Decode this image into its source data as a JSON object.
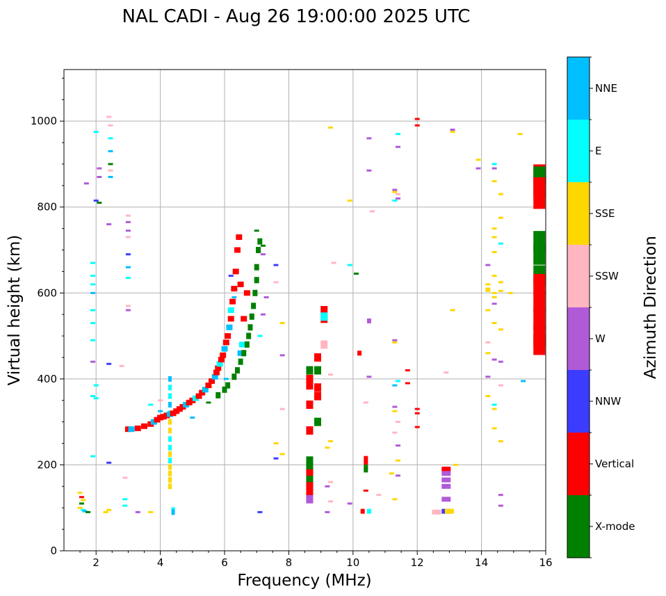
{
  "chart_data": {
    "type": "scatter",
    "title": "NAL CADI - Aug 26 19:00:00 2025 UTC",
    "xlabel": "Frequency (MHz)",
    "ylabel": "Virtual height (km)",
    "xlim": [
      1,
      16
    ],
    "ylim": [
      0,
      1120
    ],
    "xticks": [
      2,
      4,
      6,
      8,
      10,
      12,
      14,
      16
    ],
    "yticks": [
      0,
      200,
      400,
      600,
      800,
      1000
    ],
    "grid": true,
    "colorbar": {
      "label": "Azimuth Direction",
      "categories": [
        {
          "name": "X-mode",
          "color": "#008000"
        },
        {
          "name": "Vertical",
          "color": "#ff0000"
        },
        {
          "name": "NNW",
          "color": "#3c3cff"
        },
        {
          "name": "W",
          "color": "#b05ad8"
        },
        {
          "name": "SSW",
          "color": "#ffb6c1"
        },
        {
          "name": "SSE",
          "color": "#ffd700"
        },
        {
          "name": "E",
          "color": "#00ffff"
        },
        {
          "name": "NNE",
          "color": "#00bfff"
        }
      ]
    },
    "trace": [
      [
        3.0,
        283,
        "Vertical"
      ],
      [
        3.1,
        283,
        "NNE"
      ],
      [
        3.3,
        285,
        "Vertical"
      ],
      [
        3.5,
        290,
        "Vertical"
      ],
      [
        3.7,
        295,
        "Vertical"
      ],
      [
        3.8,
        300,
        "NNE"
      ],
      [
        3.9,
        305,
        "Vertical"
      ],
      [
        4.0,
        310,
        "Vertical"
      ],
      [
        4.1,
        312,
        "Vertical"
      ],
      [
        4.2,
        315,
        "Vertical"
      ],
      [
        4.3,
        318,
        "NNE"
      ],
      [
        4.4,
        320,
        "Vertical"
      ],
      [
        4.5,
        325,
        "Vertical"
      ],
      [
        4.6,
        330,
        "Vertical"
      ],
      [
        4.7,
        335,
        "Vertical"
      ],
      [
        4.8,
        340,
        "NNE"
      ],
      [
        4.9,
        345,
        "Vertical"
      ],
      [
        5.0,
        350,
        "Vertical"
      ],
      [
        5.1,
        355,
        "E"
      ],
      [
        5.2,
        360,
        "Vertical"
      ],
      [
        5.3,
        368,
        "Vertical"
      ],
      [
        5.4,
        375,
        "NNE"
      ],
      [
        5.5,
        385,
        "Vertical"
      ],
      [
        5.6,
        395,
        "Vertical"
      ],
      [
        5.7,
        405,
        "NNE"
      ],
      [
        5.75,
        415,
        "Vertical"
      ],
      [
        5.8,
        425,
        "Vertical"
      ],
      [
        5.85,
        435,
        "E"
      ],
      [
        5.9,
        445,
        "Vertical"
      ],
      [
        5.95,
        455,
        "Vertical"
      ],
      [
        6.0,
        470,
        "NNE"
      ],
      [
        6.05,
        485,
        "Vertical"
      ],
      [
        6.1,
        500,
        "Vertical"
      ],
      [
        6.15,
        520,
        "NNE"
      ],
      [
        6.2,
        540,
        "Vertical"
      ],
      [
        6.2,
        560,
        "E"
      ],
      [
        6.25,
        580,
        "Vertical"
      ],
      [
        6.3,
        610,
        "Vertical"
      ],
      [
        6.35,
        650,
        "Vertical"
      ],
      [
        6.4,
        700,
        "Vertical"
      ],
      [
        6.45,
        730,
        "Vertical"
      ],
      [
        6.5,
        460,
        "NNE"
      ],
      [
        6.55,
        480,
        "E"
      ],
      [
        6.6,
        540,
        "Vertical"
      ],
      [
        6.5,
        620,
        "Vertical"
      ],
      [
        6.7,
        600,
        "Vertical"
      ]
    ],
    "xmode_trace": [
      [
        5.8,
        362,
        "X-mode"
      ],
      [
        6.0,
        375,
        "X-mode"
      ],
      [
        6.1,
        385,
        "X-mode"
      ],
      [
        6.3,
        405,
        "X-mode"
      ],
      [
        6.4,
        420,
        "X-mode"
      ],
      [
        6.5,
        440,
        "X-mode"
      ],
      [
        6.6,
        460,
        "X-mode"
      ],
      [
        6.7,
        480,
        "X-mode"
      ],
      [
        6.75,
        500,
        "X-mode"
      ],
      [
        6.8,
        520,
        "X-mode"
      ],
      [
        6.85,
        545,
        "X-mode"
      ],
      [
        6.9,
        570,
        "X-mode"
      ],
      [
        6.95,
        600,
        "X-mode"
      ],
      [
        7.0,
        630,
        "X-mode"
      ],
      [
        7.0,
        660,
        "X-mode"
      ],
      [
        7.05,
        700,
        "X-mode"
      ],
      [
        7.1,
        720,
        "X-mode"
      ]
    ],
    "f4_column": [
      [
        4.3,
        400,
        "NNE"
      ],
      [
        4.3,
        380,
        "E"
      ],
      [
        4.3,
        360,
        "E"
      ],
      [
        4.3,
        340,
        "NNE"
      ],
      [
        4.3,
        320,
        "E"
      ],
      [
        4.3,
        300,
        "SSE"
      ],
      [
        4.3,
        280,
        "SSE"
      ],
      [
        4.3,
        260,
        "E"
      ],
      [
        4.3,
        240,
        "E"
      ],
      [
        4.3,
        225,
        "SSE"
      ],
      [
        4.3,
        210,
        "E"
      ],
      [
        4.3,
        195,
        "SSE"
      ],
      [
        4.3,
        180,
        "SSE"
      ],
      [
        4.3,
        165,
        "SSE"
      ],
      [
        4.3,
        150,
        "SSE"
      ],
      [
        4.4,
        95,
        "E"
      ],
      [
        4.4,
        90,
        "NNE"
      ]
    ],
    "f86_column": [
      [
        8.65,
        420,
        "X-mode"
      ],
      [
        8.65,
        400,
        "Vertical"
      ],
      [
        8.65,
        385,
        "Vertical"
      ],
      [
        8.65,
        340,
        "Vertical"
      ],
      [
        8.65,
        280,
        "Vertical"
      ],
      [
        8.65,
        210,
        "X-mode"
      ],
      [
        8.65,
        195,
        "X-mode"
      ],
      [
        8.65,
        180,
        "Vertical"
      ],
      [
        8.65,
        165,
        "X-mode"
      ],
      [
        8.65,
        150,
        "Vertical"
      ],
      [
        8.65,
        135,
        "Vertical"
      ],
      [
        8.65,
        120,
        "W"
      ],
      [
        8.9,
        450,
        "Vertical"
      ],
      [
        8.9,
        420,
        "X-mode"
      ],
      [
        8.9,
        380,
        "Vertical"
      ],
      [
        8.9,
        360,
        "Vertical"
      ],
      [
        8.9,
        300,
        "X-mode"
      ],
      [
        9.1,
        560,
        "Vertical"
      ],
      [
        9.1,
        540,
        "Vertical"
      ],
      [
        9.1,
        480,
        "SSW"
      ],
      [
        9.1,
        545,
        "E"
      ]
    ],
    "f104_column": [
      [
        10.4,
        215,
        "Vertical"
      ],
      [
        10.4,
        205,
        "Vertical"
      ],
      [
        10.4,
        195,
        "X-mode"
      ],
      [
        10.4,
        188,
        "X-mode"
      ],
      [
        10.3,
        92,
        "Vertical"
      ],
      [
        10.5,
        92,
        "E"
      ],
      [
        10.2,
        460,
        "Vertical"
      ],
      [
        10.5,
        535,
        "W"
      ]
    ],
    "f128_column": [
      [
        12.9,
        190,
        "Vertical"
      ],
      [
        12.9,
        180,
        "W"
      ],
      [
        12.9,
        165,
        "W"
      ],
      [
        12.9,
        150,
        "W"
      ],
      [
        12.9,
        120,
        "W"
      ],
      [
        12.9,
        92,
        "NNW"
      ],
      [
        13.0,
        92,
        "SSE"
      ],
      [
        12.6,
        90,
        "SSW"
      ]
    ],
    "edge_bar": [
      [
        15.8,
        875,
        "Vertical"
      ],
      [
        15.8,
        870,
        "X-mode"
      ],
      [
        15.8,
        845,
        "Vertical"
      ],
      [
        15.8,
        820,
        "Vertical"
      ],
      [
        15.8,
        720,
        "X-mode"
      ],
      [
        15.8,
        690,
        "X-mode"
      ],
      [
        15.8,
        640,
        "X-mode"
      ],
      [
        15.8,
        620,
        "Vertical"
      ],
      [
        15.8,
        580,
        "Vertical"
      ],
      [
        15.8,
        540,
        "Vertical"
      ],
      [
        15.8,
        500,
        "Vertical"
      ],
      [
        15.8,
        480,
        "Vertical"
      ]
    ],
    "scatter_points": [
      [
        1.5,
        135,
        "SSE"
      ],
      [
        1.55,
        125,
        "Vertical"
      ],
      [
        1.6,
        118,
        "SSE"
      ],
      [
        1.55,
        110,
        "X-mode"
      ],
      [
        1.5,
        100,
        "SSE"
      ],
      [
        1.6,
        95,
        "E"
      ],
      [
        1.65,
        92,
        "NNE"
      ],
      [
        1.75,
        90,
        "X-mode"
      ],
      [
        2.0,
        975,
        "E"
      ],
      [
        2.1,
        890,
        "W"
      ],
      [
        2.1,
        870,
        "W"
      ],
      [
        1.7,
        855,
        "W"
      ],
      [
        2.0,
        815,
        "NNW"
      ],
      [
        2.1,
        810,
        "X-mode"
      ],
      [
        2.4,
        1010,
        "SSW"
      ],
      [
        2.45,
        990,
        "SSW"
      ],
      [
        2.45,
        960,
        "E"
      ],
      [
        2.45,
        930,
        "NNE"
      ],
      [
        2.45,
        900,
        "X-mode"
      ],
      [
        2.45,
        885,
        "SSW"
      ],
      [
        2.45,
        870,
        "NNE"
      ],
      [
        2.4,
        760,
        "W"
      ],
      [
        2.4,
        435,
        "NNW"
      ],
      [
        2.4,
        205,
        "NNW"
      ],
      [
        2.4,
        95,
        "SSE"
      ],
      [
        2.3,
        90,
        "SSE"
      ],
      [
        2.0,
        385,
        "E"
      ],
      [
        2.0,
        355,
        "E"
      ],
      [
        1.9,
        670,
        "E"
      ],
      [
        1.9,
        640,
        "E"
      ],
      [
        1.9,
        620,
        "E"
      ],
      [
        1.9,
        600,
        "NNE"
      ],
      [
        1.9,
        560,
        "E"
      ],
      [
        1.9,
        530,
        "E"
      ],
      [
        1.9,
        490,
        "E"
      ],
      [
        1.9,
        440,
        "W"
      ],
      [
        1.9,
        360,
        "E"
      ],
      [
        1.9,
        220,
        "E"
      ],
      [
        3.0,
        780,
        "SSW"
      ],
      [
        3.0,
        765,
        "W"
      ],
      [
        3.0,
        745,
        "W"
      ],
      [
        3.0,
        730,
        "SSW"
      ],
      [
        3.0,
        690,
        "NNW"
      ],
      [
        3.0,
        660,
        "NNE"
      ],
      [
        3.0,
        635,
        "E"
      ],
      [
        3.0,
        570,
        "SSW"
      ],
      [
        3.0,
        560,
        "W"
      ],
      [
        2.9,
        170,
        "SSW"
      ],
      [
        2.9,
        120,
        "E"
      ],
      [
        2.9,
        105,
        "E"
      ],
      [
        3.3,
        90,
        "W"
      ],
      [
        3.7,
        90,
        "SSE"
      ],
      [
        2.8,
        430,
        "SSW"
      ],
      [
        4.0,
        350,
        "SSW"
      ],
      [
        4.0,
        325,
        "NNE"
      ],
      [
        3.7,
        340,
        "E"
      ],
      [
        5.0,
        310,
        "NNE"
      ],
      [
        5.5,
        345,
        "X-mode"
      ],
      [
        6.05,
        400,
        "NNE"
      ],
      [
        6.3,
        590,
        "NNE"
      ],
      [
        6.2,
        640,
        "NNW"
      ],
      [
        7.0,
        745,
        "X-mode"
      ],
      [
        7.2,
        710,
        "X-mode"
      ],
      [
        7.2,
        690,
        "W"
      ],
      [
        7.1,
        500,
        "E"
      ],
      [
        7.2,
        550,
        "W"
      ],
      [
        7.3,
        590,
        "W"
      ],
      [
        7.1,
        90,
        "NNW"
      ],
      [
        7.6,
        665,
        "NNW"
      ],
      [
        7.6,
        625,
        "SSW"
      ],
      [
        7.6,
        250,
        "SSE"
      ],
      [
        7.6,
        215,
        "NNW"
      ],
      [
        7.8,
        530,
        "SSE"
      ],
      [
        7.8,
        455,
        "W"
      ],
      [
        7.8,
        330,
        "SSW"
      ],
      [
        7.8,
        225,
        "SSE"
      ],
      [
        9.3,
        985,
        "SSE"
      ],
      [
        9.4,
        670,
        "SSW"
      ],
      [
        9.3,
        410,
        "SSW"
      ],
      [
        9.3,
        255,
        "SSE"
      ],
      [
        9.2,
        240,
        "SSE"
      ],
      [
        9.3,
        160,
        "SSW"
      ],
      [
        9.2,
        150,
        "W"
      ],
      [
        9.3,
        115,
        "SSW"
      ],
      [
        9.2,
        90,
        "W"
      ],
      [
        9.9,
        815,
        "SSE"
      ],
      [
        9.9,
        665,
        "E"
      ],
      [
        10.1,
        645,
        "X-mode"
      ],
      [
        9.9,
        110,
        "W"
      ],
      [
        10.5,
        960,
        "W"
      ],
      [
        10.5,
        885,
        "W"
      ],
      [
        10.6,
        790,
        "SSW"
      ],
      [
        10.5,
        405,
        "W"
      ],
      [
        10.4,
        345,
        "SSW"
      ],
      [
        10.4,
        140,
        "Vertical"
      ],
      [
        10.8,
        130,
        "SSW"
      ],
      [
        11.4,
        970,
        "E"
      ],
      [
        11.4,
        940,
        "W"
      ],
      [
        11.3,
        840,
        "W"
      ],
      [
        11.3,
        835,
        "SSE"
      ],
      [
        11.4,
        830,
        "SSW"
      ],
      [
        11.4,
        820,
        "W"
      ],
      [
        11.3,
        815,
        "E"
      ],
      [
        11.3,
        490,
        "W"
      ],
      [
        11.3,
        485,
        "SSE"
      ],
      [
        11.3,
        385,
        "NNE"
      ],
      [
        11.4,
        395,
        "E"
      ],
      [
        11.7,
        420,
        "Vertical"
      ],
      [
        11.7,
        390,
        "Vertical"
      ],
      [
        11.3,
        335,
        "W"
      ],
      [
        11.3,
        325,
        "SSE"
      ],
      [
        11.4,
        300,
        "SSW"
      ],
      [
        11.3,
        275,
        "SSW"
      ],
      [
        11.4,
        245,
        "W"
      ],
      [
        11.4,
        210,
        "SSE"
      ],
      [
        11.2,
        180,
        "SSE"
      ],
      [
        11.4,
        175,
        "W"
      ],
      [
        11.3,
        120,
        "SSE"
      ],
      [
        12.0,
        1005,
        "Vertical"
      ],
      [
        12.0,
        990,
        "Vertical"
      ],
      [
        12.0,
        330,
        "Vertical"
      ],
      [
        12.0,
        320,
        "Vertical"
      ],
      [
        12.0,
        288,
        "Vertical"
      ],
      [
        13.1,
        980,
        "W"
      ],
      [
        13.1,
        975,
        "SSE"
      ],
      [
        13.1,
        560,
        "SSE"
      ],
      [
        12.9,
        415,
        "SSW"
      ],
      [
        13.2,
        200,
        "SSE"
      ],
      [
        13.9,
        910,
        "SSE"
      ],
      [
        13.9,
        890,
        "W"
      ],
      [
        14.4,
        900,
        "E"
      ],
      [
        14.4,
        890,
        "W"
      ],
      [
        14.4,
        860,
        "SSE"
      ],
      [
        14.6,
        830,
        "SSE"
      ],
      [
        14.6,
        775,
        "SSE"
      ],
      [
        14.4,
        750,
        "SSE"
      ],
      [
        14.4,
        730,
        "SSE"
      ],
      [
        14.6,
        715,
        "E"
      ],
      [
        14.4,
        695,
        "SSE"
      ],
      [
        14.2,
        665,
        "W"
      ],
      [
        14.4,
        640,
        "SSE"
      ],
      [
        14.2,
        620,
        "SSE"
      ],
      [
        14.2,
        610,
        "SSE"
      ],
      [
        14.2,
        605,
        "SSE"
      ],
      [
        14.4,
        600,
        "SSE"
      ],
      [
        14.6,
        625,
        "SSE"
      ],
      [
        14.6,
        605,
        "SSE"
      ],
      [
        14.9,
        600,
        "SSE"
      ],
      [
        14.4,
        590,
        "SSE"
      ],
      [
        14.4,
        575,
        "W"
      ],
      [
        14.2,
        560,
        "SSE"
      ],
      [
        14.4,
        530,
        "SSE"
      ],
      [
        14.6,
        515,
        "SSE"
      ],
      [
        14.2,
        485,
        "SSW"
      ],
      [
        14.2,
        460,
        "SSE"
      ],
      [
        14.4,
        445,
        "W"
      ],
      [
        14.6,
        440,
        "W"
      ],
      [
        14.2,
        405,
        "W"
      ],
      [
        14.6,
        385,
        "SSW"
      ],
      [
        14.2,
        360,
        "SSE"
      ],
      [
        14.4,
        340,
        "E"
      ],
      [
        14.4,
        330,
        "SSE"
      ],
      [
        14.4,
        285,
        "SSE"
      ],
      [
        14.6,
        255,
        "SSE"
      ],
      [
        14.6,
        130,
        "W"
      ],
      [
        14.6,
        105,
        "W"
      ],
      [
        15.2,
        970,
        "SSE"
      ],
      [
        15.3,
        395,
        "NNE"
      ]
    ]
  }
}
